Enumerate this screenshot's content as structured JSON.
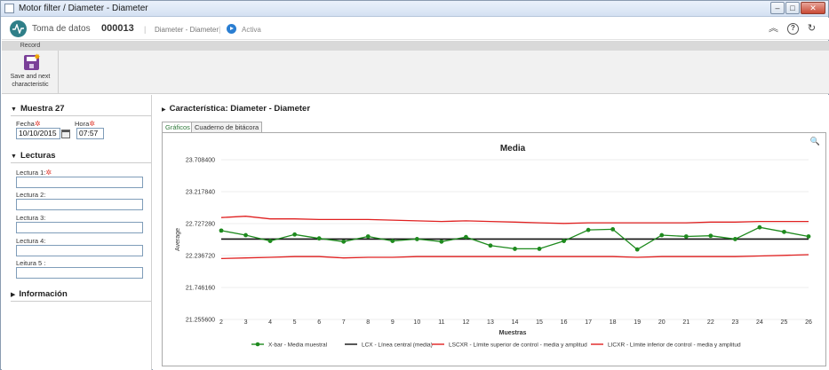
{
  "window": {
    "title": "Motor filter / Diameter - Diameter"
  },
  "header": {
    "app_name": "Toma de datos",
    "code": "000013",
    "name": "Diameter - Diameter",
    "status": "Activa"
  },
  "ribbon": {
    "tab_label": "Record",
    "save_next_label": "Save and next characteristic"
  },
  "sample": {
    "title": "Muestra 27",
    "date_label": "Fecha",
    "date_value": "10/10/2015",
    "time_label": "Hora",
    "time_value": "07:57"
  },
  "readings": {
    "title": "Lecturas",
    "items": [
      {
        "label": "Lectura 1:",
        "value": "",
        "required": true
      },
      {
        "label": "Lectura 2:",
        "value": ""
      },
      {
        "label": "Lectura 3:",
        "value": ""
      },
      {
        "label": "Lectura 4:",
        "value": ""
      },
      {
        "label": "Leitura 5 :",
        "value": ""
      }
    ]
  },
  "info": {
    "title": "Información"
  },
  "characteristic": {
    "title": "Característica: Diameter - Diameter"
  },
  "tabs": [
    {
      "label": "Gráficos",
      "active": true
    },
    {
      "label": "Cuaderno de bitácora",
      "active": false
    }
  ],
  "chart_data": {
    "type": "line",
    "title": "Media",
    "xlabel": "Muestras",
    "ylabel": "Average",
    "ylim": [
      21.2556,
      23.7084
    ],
    "yticks": [
      "23.708400",
      "23.217840",
      "22.727280",
      "22.236720",
      "21.746160",
      "21.255600"
    ],
    "x": [
      2,
      3,
      4,
      5,
      6,
      7,
      8,
      9,
      10,
      11,
      12,
      13,
      14,
      15,
      16,
      17,
      18,
      19,
      20,
      21,
      22,
      23,
      24,
      25,
      26
    ],
    "legend_position": "bottom",
    "series": [
      {
        "name": "X-bar - Media muestral",
        "color": "#1e8a1e",
        "markers": true,
        "values": [
          22.62,
          22.55,
          22.46,
          22.56,
          22.5,
          22.45,
          22.53,
          22.46,
          22.49,
          22.45,
          22.52,
          22.39,
          22.34,
          22.34,
          22.46,
          22.63,
          22.64,
          22.33,
          22.55,
          22.53,
          22.54,
          22.49,
          22.67,
          22.6,
          22.53
        ]
      },
      {
        "name": "LCX - Línea central (media)",
        "color": "#111111",
        "markers": false,
        "values": [
          22.49,
          22.49,
          22.49,
          22.49,
          22.49,
          22.49,
          22.49,
          22.49,
          22.49,
          22.49,
          22.49,
          22.49,
          22.49,
          22.49,
          22.49,
          22.49,
          22.49,
          22.49,
          22.49,
          22.49,
          22.49,
          22.49,
          22.49,
          22.49,
          22.49
        ]
      },
      {
        "name": "LSCXR - Límite superior de control - media y amplitud",
        "color": "#e02020",
        "markers": false,
        "values": [
          22.82,
          22.84,
          22.8,
          22.8,
          22.79,
          22.79,
          22.79,
          22.78,
          22.77,
          22.76,
          22.77,
          22.76,
          22.75,
          22.74,
          22.73,
          22.74,
          22.74,
          22.74,
          22.74,
          22.74,
          22.75,
          22.75,
          22.76,
          22.76,
          22.76
        ]
      },
      {
        "name": "LICXR - Límite inferior de control - media y amplitud",
        "color": "#e02020",
        "markers": false,
        "values": [
          22.19,
          22.2,
          22.21,
          22.22,
          22.22,
          22.2,
          22.21,
          22.21,
          22.22,
          22.22,
          22.22,
          22.22,
          22.22,
          22.22,
          22.22,
          22.22,
          22.22,
          22.21,
          22.22,
          22.22,
          22.22,
          22.22,
          22.23,
          22.24,
          22.25
        ]
      }
    ]
  },
  "colors": {
    "accent": "#2f7f88",
    "required": "#e03a2f",
    "status_icon": "#2a7ed2"
  }
}
